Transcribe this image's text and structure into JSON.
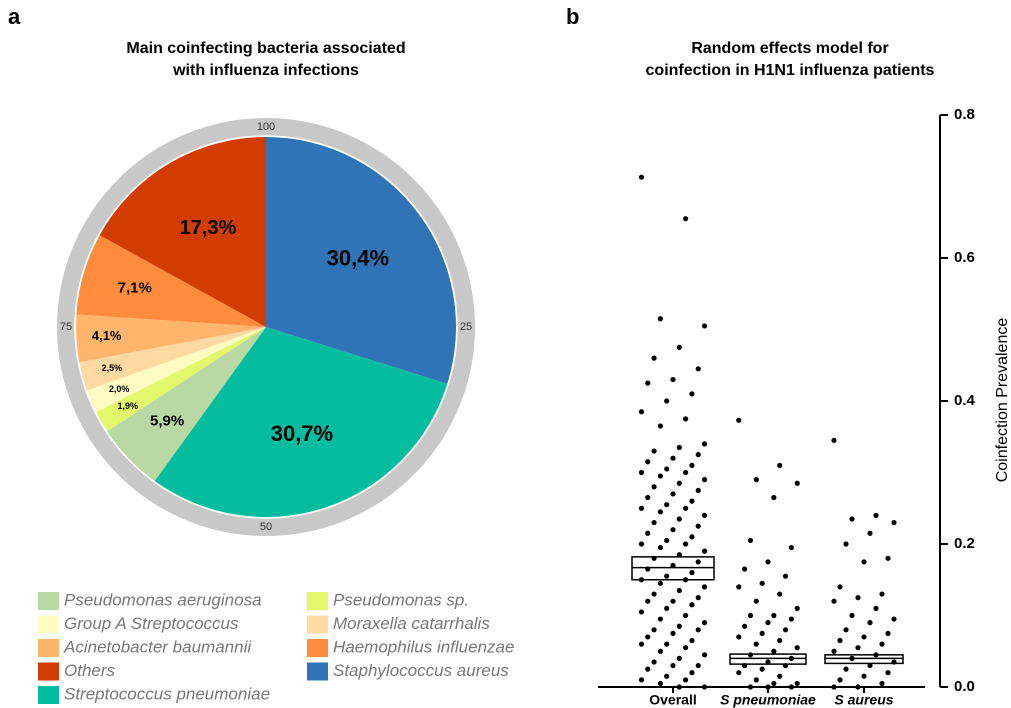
{
  "chart_data": [
    {
      "type": "pie",
      "panel_label": "a",
      "title": [
        "Main coinfecting bacteria associated",
        "with influenza infections"
      ],
      "categories": [
        "Pseudomonas aeruginosa",
        "Pseudomonas sp.",
        "Group A Streptococcus",
        "Moraxella catarrhalis",
        "Acinetobacter baumannii",
        "Haemophilus influenzae",
        "Others",
        "Staphylococcus aureus",
        "Streptococcus pneumoniae"
      ],
      "values": [
        5.9,
        1.9,
        2.0,
        2.5,
        4.1,
        7.1,
        17.3,
        30.4,
        30.7
      ],
      "value_labels": [
        "5,9%",
        "1,9%",
        "2,0%",
        "2,5%",
        "4,1%",
        "7,1%",
        "17,3%",
        "30,4%",
        "30,7%"
      ],
      "colors": [
        "#b9d8a3",
        "#e3f76a",
        "#fffcc2",
        "#ffd9a2",
        "#ffb56b",
        "#ff8b3d",
        "#d13d00",
        "#2e74b7",
        "#03bd9e"
      ],
      "ring_lim": [
        0,
        100
      ],
      "ring_ticks": [
        25,
        50,
        75,
        100
      ]
    },
    {
      "type": "strip",
      "panel_label": "b",
      "title": [
        "Random effects model for",
        "coinfection in H1N1 influenza patients"
      ],
      "ylabel": "Coinfection Prevalence",
      "categories": [
        "Overall",
        "S pneumoniae",
        "S aureus"
      ],
      "values": [
        [
          0.713,
          0.655,
          0.515,
          0.505,
          0.475,
          0.46,
          0.445,
          0.43,
          0.425,
          0.41,
          0.4,
          0.385,
          0.375,
          0.365,
          0.34,
          0.335,
          0.33,
          0.325,
          0.32,
          0.315,
          0.31,
          0.305,
          0.3,
          0.3,
          0.295,
          0.29,
          0.285,
          0.28,
          0.275,
          0.27,
          0.265,
          0.26,
          0.255,
          0.25,
          0.25,
          0.245,
          0.24,
          0.235,
          0.23,
          0.225,
          0.22,
          0.215,
          0.21,
          0.205,
          0.2,
          0.2,
          0.195,
          0.19,
          0.185,
          0.18,
          0.175,
          0.17,
          0.165,
          0.16,
          0.155,
          0.15,
          0.15,
          0.145,
          0.14,
          0.135,
          0.13,
          0.125,
          0.12,
          0.12,
          0.115,
          0.11,
          0.105,
          0.1,
          0.095,
          0.09,
          0.085,
          0.08,
          0.08,
          0.075,
          0.07,
          0.065,
          0.06,
          0.06,
          0.055,
          0.05,
          0.045,
          0.04,
          0.035,
          0.03,
          0.03,
          0.025,
          0.02,
          0.015,
          0.01,
          0.01,
          0.005,
          0.0,
          0.0
        ],
        [
          0.373,
          0.31,
          0.29,
          0.285,
          0.265,
          0.205,
          0.195,
          0.175,
          0.165,
          0.155,
          0.145,
          0.14,
          0.13,
          0.12,
          0.11,
          0.1,
          0.1,
          0.095,
          0.09,
          0.085,
          0.08,
          0.075,
          0.07,
          0.065,
          0.06,
          0.055,
          0.05,
          0.045,
          0.04,
          0.035,
          0.03,
          0.03,
          0.025,
          0.02,
          0.015,
          0.01,
          0.005,
          0.005,
          0.0,
          0.0,
          0.0
        ],
        [
          0.345,
          0.24,
          0.235,
          0.23,
          0.215,
          0.2,
          0.18,
          0.175,
          0.14,
          0.13,
          0.125,
          0.12,
          0.11,
          0.1,
          0.095,
          0.09,
          0.08,
          0.075,
          0.07,
          0.065,
          0.06,
          0.055,
          0.05,
          0.045,
          0.04,
          0.035,
          0.03,
          0.025,
          0.02,
          0.015,
          0.01,
          0.005,
          0.0,
          0.0
        ]
      ],
      "means": [
        0.167,
        0.04,
        0.04
      ],
      "ci_low": [
        0.15,
        0.032,
        0.033
      ],
      "ci_high": [
        0.182,
        0.046,
        0.045
      ],
      "ylim": [
        0,
        0.8
      ],
      "yticks": [
        {
          "value": 0,
          "label": "0.0"
        },
        {
          "value": 0.2,
          "label": "0.2"
        },
        {
          "value": 0.4,
          "label": "0.4"
        },
        {
          "value": 0.6,
          "label": "0.6"
        },
        {
          "value": 0.8,
          "label": "0.8"
        }
      ],
      "y_axis_side": "right",
      "color": "#000000"
    }
  ]
}
